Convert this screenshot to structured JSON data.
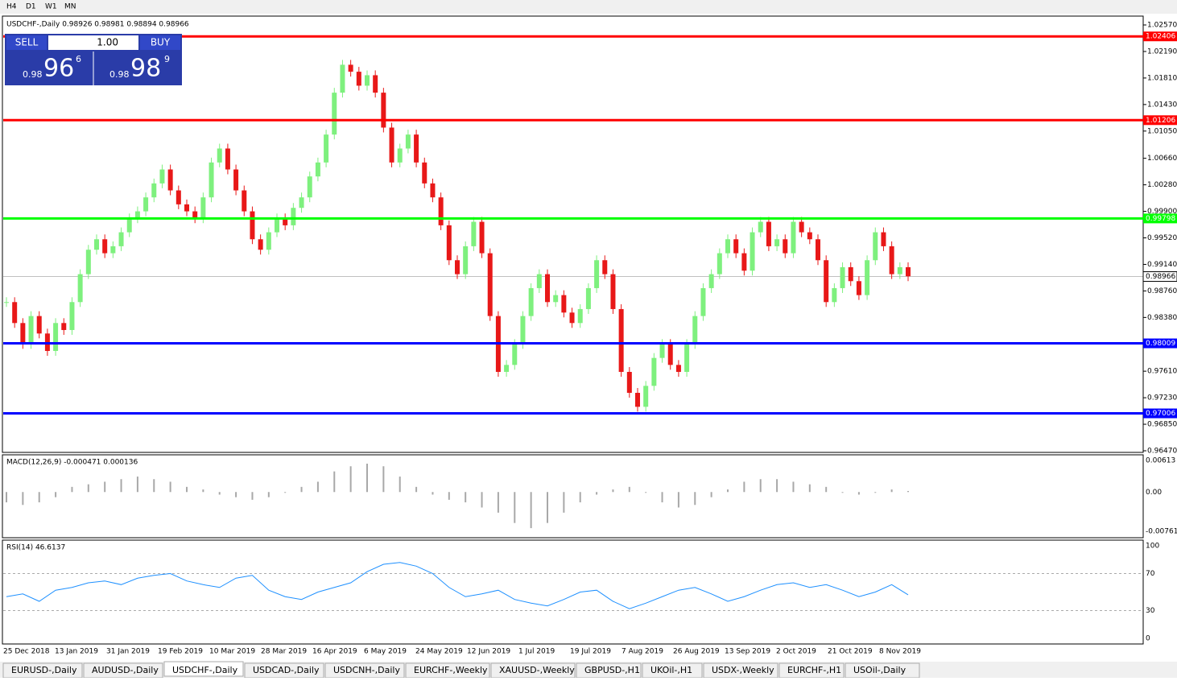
{
  "timeframes": [
    "H4",
    "D1",
    "W1",
    "MN"
  ],
  "header": "USDCHF-,Daily  0.98926 0.98981 0.98894 0.98966",
  "trade_panel": {
    "sell": "SELL",
    "lot": "1.00",
    "buy": "BUY",
    "bid": {
      "big": "0.98",
      "main": "96",
      "pip": "6"
    },
    "ask": {
      "big": "0.98",
      "main": "98",
      "pip": "9"
    }
  },
  "price_axis": {
    "ylim": [
      0.9647,
      1.0257
    ],
    "ticks": [
      {
        "value": 1.0257,
        "label": "1.02570"
      },
      {
        "value": 1.0219,
        "label": "1.02190"
      },
      {
        "value": 1.0181,
        "label": "1.01810"
      },
      {
        "value": 1.0143,
        "label": "1.01430"
      },
      {
        "value": 1.0105,
        "label": "1.01050"
      },
      {
        "value": 1.0066,
        "label": "1.00660"
      },
      {
        "value": 1.0028,
        "label": "1.00280"
      },
      {
        "value": 0.999,
        "label": "0.99900"
      },
      {
        "value": 0.9952,
        "label": "0.99520"
      },
      {
        "value": 0.9914,
        "label": "0.99140"
      },
      {
        "value": 0.9876,
        "label": "0.98760"
      },
      {
        "value": 0.9838,
        "label": "0.98380"
      },
      {
        "value": 0.9761,
        "label": "0.97610"
      },
      {
        "value": 0.9723,
        "label": "0.97230"
      },
      {
        "value": 0.9685,
        "label": "0.96850"
      },
      {
        "value": 0.9647,
        "label": "0.96470"
      }
    ]
  },
  "levels": [
    {
      "value": 1.02406,
      "label": "1.02406",
      "color": "#ff0000"
    },
    {
      "value": 1.01206,
      "label": "1.01206",
      "color": "#ff0000"
    },
    {
      "value": 0.99798,
      "label": "0.99798",
      "color": "#00ff00"
    },
    {
      "value": 0.98009,
      "label": "0.98009",
      "color": "#0000ff"
    },
    {
      "value": 0.97006,
      "label": "0.97006",
      "color": "#0000ff"
    }
  ],
  "current_price": {
    "value": 0.98966,
    "label": "0.98966"
  },
  "closes": [
    0.986,
    0.983,
    0.98,
    0.984,
    0.9815,
    0.979,
    0.983,
    0.982,
    0.986,
    0.99,
    0.9935,
    0.995,
    0.993,
    0.994,
    0.996,
    0.998,
    0.999,
    1.001,
    1.003,
    1.005,
    1.002,
    1.0,
    0.999,
    0.998,
    1.001,
    1.006,
    1.008,
    1.005,
    1.002,
    0.999,
    0.995,
    0.9935,
    0.996,
    0.998,
    0.997,
    0.9995,
    1.001,
    1.004,
    1.006,
    1.01,
    1.016,
    1.02,
    1.019,
    1.017,
    1.0185,
    1.016,
    1.011,
    1.006,
    1.008,
    1.01,
    1.006,
    1.003,
    1.001,
    0.997,
    0.992,
    0.99,
    0.994,
    0.9975,
    0.993,
    0.984,
    0.976,
    0.977,
    0.98,
    0.984,
    0.988,
    0.99,
    0.986,
    0.987,
    0.9845,
    0.983,
    0.985,
    0.988,
    0.992,
    0.99,
    0.985,
    0.976,
    0.973,
    0.971,
    0.974,
    0.978,
    0.98,
    0.977,
    0.976,
    0.98,
    0.984,
    0.988,
    0.99,
    0.993,
    0.995,
    0.993,
    0.9905,
    0.996,
    0.9975,
    0.994,
    0.995,
    0.993,
    0.9975,
    0.996,
    0.995,
    0.992,
    0.986,
    0.988,
    0.991,
    0.989,
    0.987,
    0.992,
    0.996,
    0.994,
    0.99,
    0.991,
    0.9897
  ],
  "dates": [
    "25 Dec 2018",
    "13 Jan 2019",
    "31 Jan 2019",
    "19 Feb 2019",
    "10 Mar 2019",
    "28 Mar 2019",
    "16 Apr 2019",
    "6 May 2019",
    "24 May 2019",
    "12 Jun 2019",
    "1 Jul 2019",
    "19 Jul 2019",
    "7 Aug 2019",
    "26 Aug 2019",
    "13 Sep 2019",
    "2 Oct 2019",
    "21 Oct 2019",
    "8 Nov 2019"
  ],
  "macd": {
    "label": "MACD(12,26,9) -0.000471 0.000136",
    "ylim": [
      -0.007612,
      0.00613
    ],
    "ticks": [
      {
        "value": 0.00613,
        "label": "0.00613"
      },
      {
        "value": 0,
        "label": "0.00"
      },
      {
        "value": -0.007612,
        "label": "-0.007612"
      }
    ],
    "histogram": [
      -0.002,
      -0.0025,
      -0.002,
      -0.001,
      0.001,
      0.0015,
      0.002,
      0.0025,
      0.003,
      0.0025,
      0.002,
      0.001,
      0.0005,
      -0.0005,
      -0.001,
      -0.0015,
      -0.001,
      0,
      0.001,
      0.002,
      0.004,
      0.005,
      0.0055,
      0.005,
      0.003,
      0.001,
      -0.0005,
      -0.0015,
      -0.002,
      -0.003,
      -0.004,
      -0.006,
      -0.007,
      -0.006,
      -0.004,
      -0.002,
      -0.0005,
      0.0005,
      0.001,
      0,
      -0.002,
      -0.003,
      -0.0025,
      -0.001,
      0.0005,
      0.002,
      0.0025,
      0.0025,
      0.002,
      0.0015,
      0.001,
      0,
      -0.0005,
      0,
      0.0005,
      0.0002
    ]
  },
  "rsi": {
    "label": "RSI(14) 46.6137",
    "ylim": [
      0,
      100
    ],
    "ticks": [
      100,
      70,
      30,
      0
    ],
    "values": [
      45,
      48,
      40,
      52,
      55,
      60,
      62,
      58,
      65,
      68,
      70,
      62,
      58,
      55,
      65,
      68,
      52,
      45,
      42,
      50,
      55,
      60,
      72,
      80,
      82,
      78,
      70,
      55,
      45,
      48,
      52,
      42,
      38,
      35,
      42,
      50,
      52,
      40,
      32,
      38,
      45,
      52,
      55,
      48,
      40,
      45,
      52,
      58,
      60,
      55,
      58,
      52,
      45,
      50,
      58,
      47
    ]
  },
  "tabs": [
    "EURUSD-,Daily",
    "AUDUSD-,Daily",
    "USDCHF-,Daily",
    "USDCAD-,Daily",
    "USDCNH-,Daily",
    "EURCHF-,Weekly",
    "XAUUSD-,Weekly",
    "GBPUSD-,H1",
    "UKOil-,H1",
    "USDX-,Weekly",
    "EURCHF-,H1",
    "USOil-,Daily"
  ],
  "active_tab": 2
}
